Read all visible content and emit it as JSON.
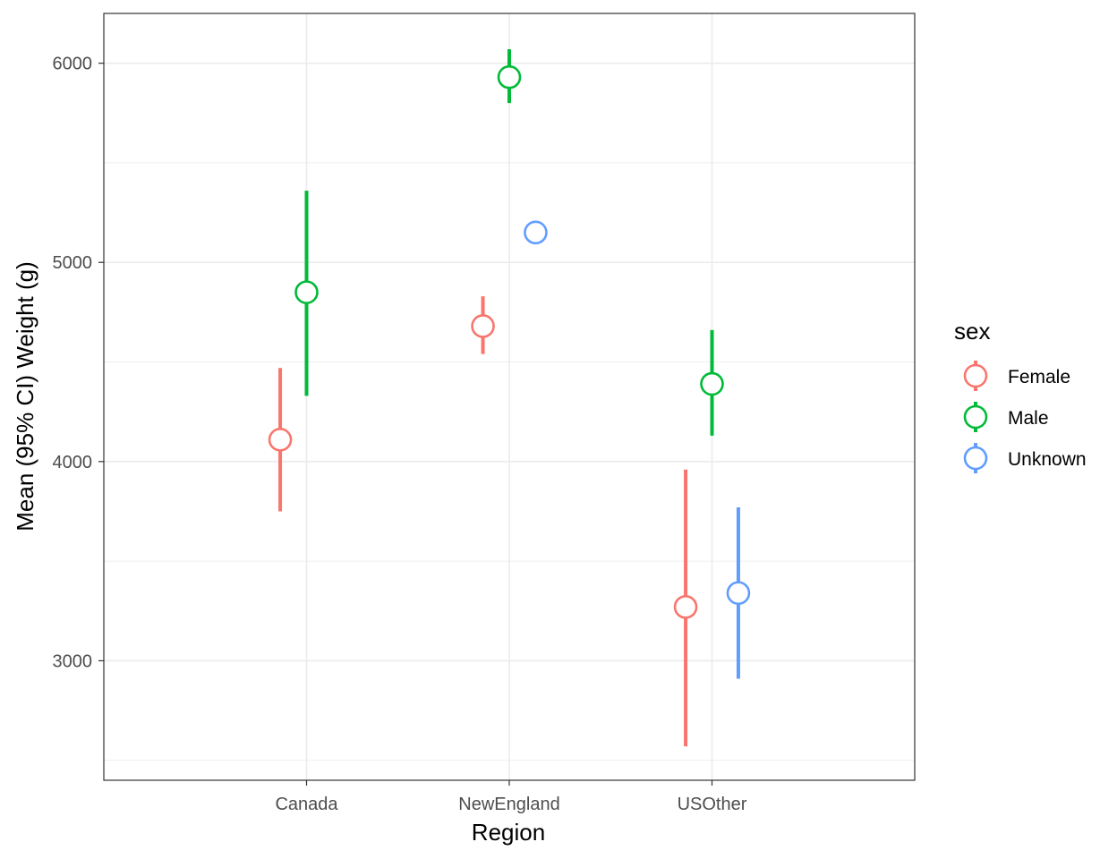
{
  "chart_data": {
    "type": "scatter",
    "subtype": "pointrange",
    "title": "",
    "xlabel": "Region",
    "ylabel": "Mean (95% CI) Weight (g)",
    "categories": [
      "Canada",
      "NewEngland",
      "USOther"
    ],
    "ylim": [
      2400,
      6250
    ],
    "yticks": [
      3000,
      4000,
      5000,
      6000
    ],
    "grid": true,
    "legend": {
      "title": "sex",
      "position": "right"
    },
    "series": [
      {
        "name": "Female",
        "color": "#F8766D",
        "points": [
          {
            "x": "Canada",
            "y": 4110,
            "lower": 3750,
            "upper": 4470
          },
          {
            "x": "NewEngland",
            "y": 4680,
            "lower": 4540,
            "upper": 4830
          },
          {
            "x": "USOther",
            "y": 3270,
            "lower": 2570,
            "upper": 3960
          }
        ]
      },
      {
        "name": "Male",
        "color": "#00BA38",
        "points": [
          {
            "x": "Canada",
            "y": 4850,
            "lower": 4330,
            "upper": 5360
          },
          {
            "x": "NewEngland",
            "y": 5930,
            "lower": 5800,
            "upper": 6070
          },
          {
            "x": "USOther",
            "y": 4390,
            "lower": 4130,
            "upper": 4660
          }
        ]
      },
      {
        "name": "Unknown",
        "color": "#619CFF",
        "points": [
          {
            "x": "NewEngland",
            "y": 5150,
            "lower": 5150,
            "upper": 5150
          },
          {
            "x": "USOther",
            "y": 3340,
            "lower": 2910,
            "upper": 3770
          }
        ]
      }
    ]
  }
}
